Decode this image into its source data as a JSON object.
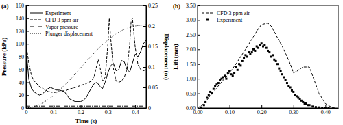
{
  "chart_data": [
    {
      "type": "line",
      "title": "(a)",
      "x_label": "Time (s)",
      "y_label": "Pressure (kPa)",
      "y2_label": "Displacement (m)",
      "xlim": [
        0,
        0.44
      ],
      "xticks": [
        0,
        0.1,
        0.2,
        0.3,
        0.4
      ],
      "ylim": [
        0,
        160
      ],
      "yticks": [
        0,
        20,
        40,
        60,
        80,
        100,
        120,
        140,
        160
      ],
      "y2lim": [
        0,
        0.25
      ],
      "y2ticks": [
        0,
        0.05,
        0.1,
        0.15,
        0.2,
        0.25
      ],
      "legend": "upper left",
      "series": [
        {
          "name": "Experiment",
          "color": "#000000",
          "line_style": "solid",
          "x": [
            0,
            0.005,
            0.01,
            0.02,
            0.03,
            0.04,
            0.05,
            0.06,
            0.07,
            0.08,
            0.09,
            0.1,
            0.11,
            0.12,
            0.13,
            0.14,
            0.15,
            0.16,
            0.17,
            0.18,
            0.19,
            0.2,
            0.21,
            0.22,
            0.23,
            0.24,
            0.25,
            0.26,
            0.27,
            0.28,
            0.29,
            0.3,
            0.31,
            0.32,
            0.33,
            0.34,
            0.35,
            0.36,
            0.37,
            0.38,
            0.39,
            0.4,
            0.41,
            0.42,
            0.43,
            0.44
          ],
          "values": [
            100,
            70,
            45,
            30,
            25,
            22,
            20,
            22,
            26,
            30,
            32,
            30,
            28,
            28,
            27,
            26,
            20,
            14,
            12,
            10,
            10,
            10,
            12,
            16,
            24,
            32,
            38,
            40,
            34,
            30,
            40,
            55,
            66,
            70,
            58,
            60,
            74,
            72,
            60,
            56,
            70,
            84,
            80,
            88,
            100,
            106
          ]
        },
        {
          "name": "CFD 3 ppm air",
          "color": "#000000",
          "line_style": "dashed",
          "x": [
            0,
            0.01,
            0.02,
            0.03,
            0.05,
            0.08,
            0.1,
            0.13,
            0.15,
            0.18,
            0.2,
            0.22,
            0.24,
            0.25,
            0.26,
            0.265,
            0.27,
            0.28,
            0.29,
            0.3,
            0.305,
            0.31,
            0.32,
            0.33,
            0.34,
            0.35,
            0.36,
            0.37,
            0.38,
            0.385,
            0.39,
            0.4,
            0.41,
            0.42,
            0.43,
            0.44
          ],
          "values": [
            100,
            70,
            50,
            42,
            33,
            26,
            24,
            26,
            28,
            32,
            35,
            38,
            42,
            50,
            68,
            75,
            66,
            42,
            48,
            100,
            140,
            110,
            62,
            42,
            40,
            42,
            48,
            60,
            100,
            135,
            140,
            95,
            68,
            60,
            58,
            60
          ]
        },
        {
          "name": "Vapor pressure",
          "color": "#000000",
          "line_style": "dashdot",
          "x": [
            0,
            0.44
          ],
          "values": [
            3,
            3
          ]
        },
        {
          "name": "Plunger displacement",
          "color": "#000000",
          "line_style": "dotted",
          "axis": "y2",
          "x": [
            0,
            0.02,
            0.04,
            0.06,
            0.08,
            0.1,
            0.12,
            0.14,
            0.16,
            0.18,
            0.2,
            0.22,
            0.24,
            0.26,
            0.28,
            0.3,
            0.32,
            0.34,
            0.36,
            0.38,
            0.4,
            0.42,
            0.44
          ],
          "values": [
            0,
            0.002,
            0.006,
            0.012,
            0.02,
            0.03,
            0.042,
            0.055,
            0.068,
            0.083,
            0.098,
            0.113,
            0.127,
            0.141,
            0.154,
            0.166,
            0.176,
            0.185,
            0.192,
            0.197,
            0.2,
            0.202,
            0.203
          ]
        }
      ]
    },
    {
      "type": "line",
      "title": "(b)",
      "y_label": "Lift (mm)",
      "xlim": [
        0,
        0.44
      ],
      "xticks": [
        {
          "value": 0,
          "label": "0.00"
        },
        {
          "value": 0.1,
          "label": "0.10"
        },
        {
          "value": 0.2,
          "label": "0.20"
        },
        {
          "value": 0.3,
          "label": "0.30"
        },
        {
          "value": 0.4,
          "label": "0.40"
        }
      ],
      "ylim": [
        0,
        3.5
      ],
      "yticks": [
        {
          "value": 0,
          "label": "0.00"
        },
        {
          "value": 0.5,
          "label": "0.50"
        },
        {
          "value": 1,
          "label": "1.00"
        },
        {
          "value": 1.5,
          "label": "1.50"
        },
        {
          "value": 2,
          "label": "2.00"
        },
        {
          "value": 2.5,
          "label": "2.50"
        },
        {
          "value": 3,
          "label": "3.00"
        },
        {
          "value": 3.5,
          "label": "3.50"
        }
      ],
      "legend": "upper left",
      "series": [
        {
          "name": "CFD 3 ppm air",
          "type": "line",
          "color": "#000000",
          "line_style": "dashed",
          "x": [
            0,
            0.02,
            0.05,
            0.08,
            0.1,
            0.12,
            0.15,
            0.17,
            0.19,
            0.2,
            0.22,
            0.23,
            0.25,
            0.27,
            0.29,
            0.3,
            0.31,
            0.33,
            0.35,
            0.36,
            0.38,
            0.4,
            0.42,
            0.43
          ],
          "values": [
            0,
            0.15,
            0.55,
            0.95,
            1.2,
            1.5,
            2.0,
            2.35,
            2.7,
            2.85,
            2.9,
            2.8,
            2.4,
            2.0,
            1.5,
            1.2,
            1.25,
            1.4,
            1.4,
            1.1,
            0.5,
            0.15,
            0.02,
            0
          ]
        },
        {
          "name": "Experiment",
          "type": "scatter",
          "color": "#000000",
          "marker": "square",
          "x": [
            0.01,
            0.02,
            0.025,
            0.03,
            0.035,
            0.04,
            0.045,
            0.05,
            0.055,
            0.06,
            0.065,
            0.07,
            0.075,
            0.08,
            0.085,
            0.09,
            0.095,
            0.1,
            0.105,
            0.11,
            0.115,
            0.12,
            0.125,
            0.13,
            0.135,
            0.14,
            0.145,
            0.15,
            0.155,
            0.16,
            0.165,
            0.17,
            0.175,
            0.18,
            0.185,
            0.19,
            0.195,
            0.2,
            0.205,
            0.21,
            0.215,
            0.22,
            0.225,
            0.23,
            0.235,
            0.24,
            0.245,
            0.25,
            0.255,
            0.26,
            0.265,
            0.27,
            0.275,
            0.28,
            0.285,
            0.29,
            0.295,
            0.3,
            0.305,
            0.31,
            0.315,
            0.32,
            0.325,
            0.33,
            0.335,
            0.34,
            0.345,
            0.35,
            0.36,
            0.37,
            0.38,
            0.39,
            0.4,
            0.41
          ],
          "values": [
            0.02,
            0.1,
            0.2,
            0.35,
            0.45,
            0.55,
            0.5,
            0.65,
            0.75,
            0.8,
            0.85,
            0.95,
            1.0,
            1.05,
            1.1,
            1.0,
            1.2,
            1.25,
            1.15,
            1.1,
            1.2,
            1.4,
            1.3,
            1.5,
            1.45,
            1.6,
            1.7,
            1.8,
            1.75,
            1.9,
            1.85,
            1.9,
            2.0,
            1.95,
            2.1,
            2.05,
            2.15,
            2.2,
            2.1,
            2.15,
            2.05,
            1.95,
            1.9,
            1.75,
            1.8,
            1.65,
            1.6,
            1.5,
            1.35,
            1.25,
            1.15,
            1.05,
            0.95,
            0.85,
            0.75,
            0.7,
            0.6,
            0.55,
            0.45,
            0.4,
            0.35,
            0.3,
            0.25,
            0.2,
            0.15,
            0.15,
            0.1,
            0.1,
            0.05,
            0.03,
            0.02,
            0.01,
            0,
            0
          ]
        }
      ]
    }
  ]
}
